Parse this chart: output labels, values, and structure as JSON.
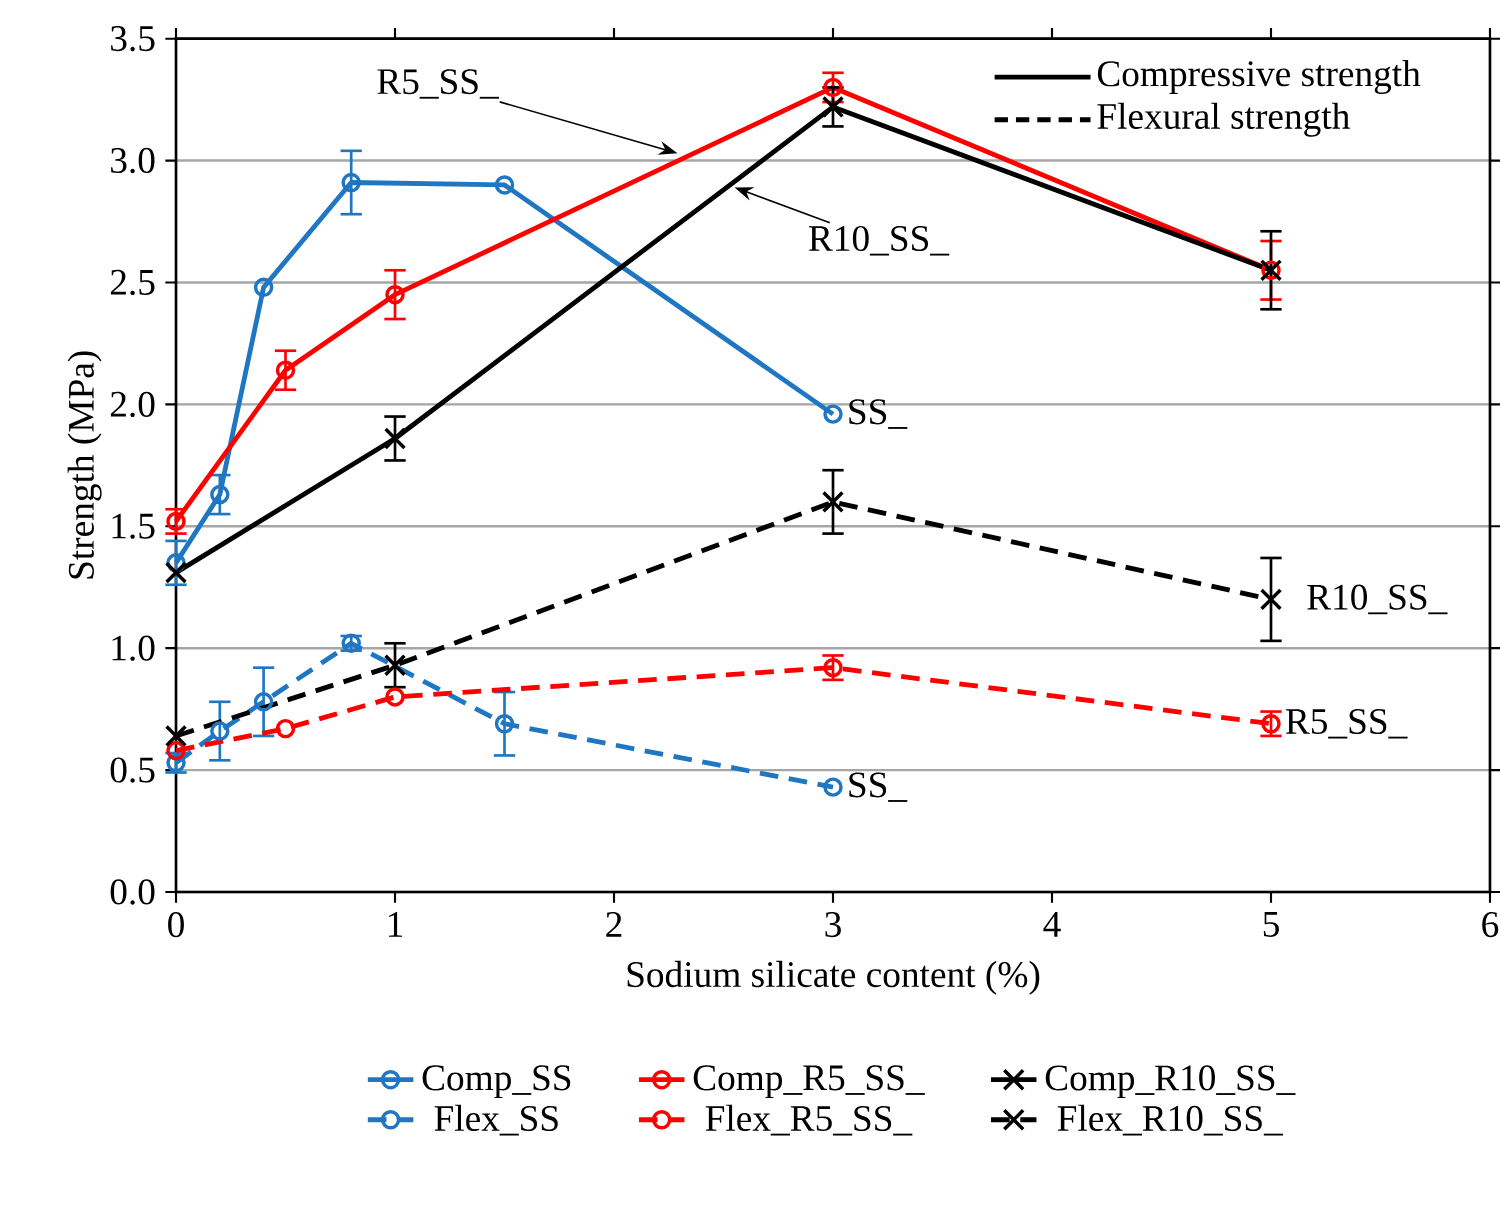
{
  "chart_data": {
    "type": "line",
    "xlabel": "Sodium silicate content (%)",
    "ylabel": "Strength (MPa)",
    "xlim": [
      0,
      6
    ],
    "xticks": [
      0,
      1,
      2,
      3,
      4,
      5,
      6
    ],
    "ylim": [
      0,
      3.5
    ],
    "yticks": [
      {
        "value": 0,
        "label": "0.0"
      },
      {
        "value": 0.5,
        "label": "0.5"
      },
      {
        "value": 1,
        "label": "1.0"
      },
      {
        "value": 1.5,
        "label": "1.5"
      },
      {
        "value": 2,
        "label": "2.0"
      },
      {
        "value": 2.5,
        "label": "2.5"
      },
      {
        "value": 3,
        "label": "3.0"
      },
      {
        "value": 3.5,
        "label": "3.5"
      }
    ],
    "grid": "y",
    "legend": "bottom",
    "series": [
      {
        "name": "Comp_SS",
        "color": "#1f77c4",
        "marker": "circle",
        "line_style": "solid",
        "x": [
          0,
          0.2,
          0.4,
          0.8,
          1.5,
          3
        ],
        "values": [
          1.35,
          1.63,
          2.48,
          2.91,
          2.9,
          1.96
        ],
        "errors": [
          0.09,
          0.08,
          null,
          0.13,
          null,
          null
        ]
      },
      {
        "name": "Comp_R5_SS_",
        "color": "#ff0000",
        "marker": "circle",
        "line_style": "solid",
        "x": [
          0,
          0.5,
          1,
          3,
          5
        ],
        "values": [
          1.52,
          2.14,
          2.45,
          3.3,
          2.55
        ],
        "errors": [
          0.05,
          0.08,
          0.1,
          0.06,
          0.12
        ]
      },
      {
        "name": "Comp_R10_SS_",
        "color": "#000000",
        "marker": "cross",
        "line_style": "solid",
        "x": [
          0,
          1,
          3,
          5
        ],
        "values": [
          1.31,
          1.86,
          3.22,
          2.55
        ],
        "errors": [
          null,
          0.09,
          0.08,
          0.16
        ]
      },
      {
        "name": "Flex_SS",
        "color": "#1f77c4",
        "marker": "circle",
        "line_style": "dashed",
        "x": [
          0,
          0.2,
          0.4,
          0.8,
          1.5,
          3
        ],
        "values": [
          0.53,
          0.66,
          0.78,
          1.02,
          0.69,
          0.43
        ],
        "errors": [
          0.04,
          0.12,
          0.14,
          0.03,
          0.13,
          null
        ]
      },
      {
        "name": "Flex_R5_SS_",
        "color": "#ff0000",
        "marker": "circle",
        "line_style": "dashed",
        "x": [
          0,
          0.5,
          1,
          3,
          5
        ],
        "values": [
          0.58,
          0.67,
          0.8,
          0.92,
          0.69
        ],
        "errors": [
          null,
          null,
          null,
          0.05,
          0.05
        ]
      },
      {
        "name": "Flex_R10_SS_",
        "color": "#000000",
        "marker": "cross",
        "line_style": "dashed",
        "x": [
          0,
          1,
          3,
          5
        ],
        "values": [
          0.64,
          0.93,
          1.6,
          1.2
        ],
        "errors": [
          null,
          0.09,
          0.13,
          0.17
        ]
      }
    ],
    "annotations": [
      {
        "text": "R5_SS_",
        "x": 2.29,
        "y": 3.03
      },
      {
        "text": "R10_SS_",
        "x": 2.55,
        "y": 2.89
      },
      {
        "text": "SS_",
        "x": 3,
        "y": 1.96
      },
      {
        "text": "R10_SS_",
        "x": 5,
        "y": 1.2
      },
      {
        "text": "R5_SS_",
        "x": 5,
        "y": 0.69
      },
      {
        "text": "SS_",
        "x": 3,
        "y": 0.43
      },
      "Compressive strength",
      "Flexural strength"
    ]
  }
}
